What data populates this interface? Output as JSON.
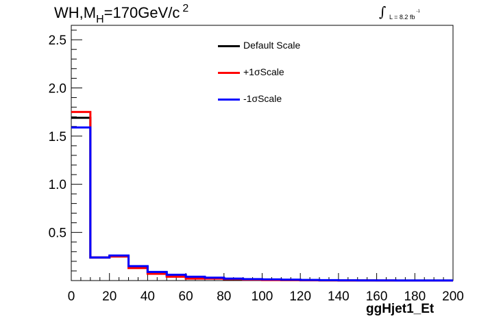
{
  "title": {
    "main": "WH,M",
    "sub": "H",
    "rest": "=170GeV/c",
    "sup": "2"
  },
  "luminosity": {
    "integral": "∫",
    "text": "L = 8.2 fb",
    "sup": "-1"
  },
  "chart_data": {
    "type": "line",
    "step": true,
    "title": "WH,M_H=170GeV/c^2",
    "xlabel": "ggHjet1_Et",
    "ylabel": "",
    "xlim": [
      0,
      200
    ],
    "ylim": [
      0,
      2.65
    ],
    "xticks": [
      0,
      20,
      40,
      60,
      80,
      100,
      120,
      140,
      160,
      180,
      200
    ],
    "yticks": [
      0.5,
      1.0,
      1.5,
      2.0,
      2.5
    ],
    "ytick_labels": [
      "0.5",
      "1.0",
      "1.5",
      "2.0",
      "2.5"
    ],
    "bin_edges": [
      0,
      10,
      20,
      30,
      40,
      50,
      60,
      70,
      80,
      90,
      100,
      110,
      120,
      130,
      140,
      150,
      160,
      170,
      180,
      190,
      200
    ],
    "series": [
      {
        "name": "Default Scale",
        "color": "#000000",
        "values": [
          1.69,
          0.24,
          0.25,
          0.14,
          0.08,
          0.05,
          0.03,
          0.025,
          0.015,
          0.01,
          0.01,
          0.005,
          0.005,
          0.003,
          0.002,
          0.002,
          0.001,
          0.001,
          0.001,
          0.001
        ]
      },
      {
        "name": "+1σScale",
        "color": "#ff0000",
        "values": [
          1.75,
          0.24,
          0.25,
          0.13,
          0.07,
          0.04,
          0.02,
          0.02,
          0.015,
          0.01,
          0.005,
          0.005,
          0.003,
          0.002,
          0.001,
          0.001,
          0.001,
          0.0,
          0.0,
          0.0
        ]
      },
      {
        "name": "-1σScale",
        "color": "#0000ff",
        "values": [
          1.59,
          0.24,
          0.26,
          0.15,
          0.09,
          0.06,
          0.04,
          0.03,
          0.02,
          0.015,
          0.012,
          0.01,
          0.006,
          0.004,
          0.003,
          0.002,
          0.002,
          0.001,
          0.001,
          0.001
        ]
      }
    ],
    "grid": false,
    "legend_position": "top"
  }
}
